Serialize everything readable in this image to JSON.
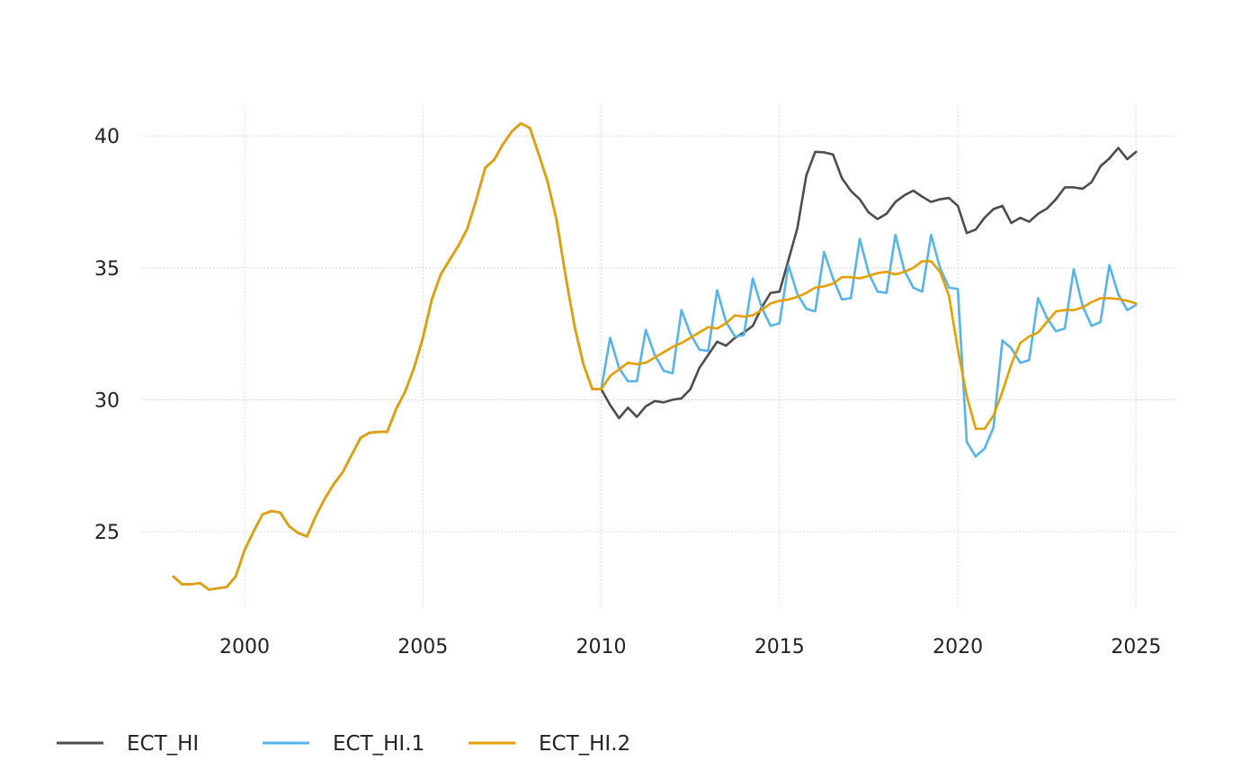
{
  "chart_data": {
    "type": "line",
    "title": "",
    "xlabel": "",
    "ylabel": "",
    "xlim": [
      1997.1,
      2026.1
    ],
    "ylim": [
      22.1,
      41.2
    ],
    "x_ticks": [
      2000,
      2005,
      2010,
      2015,
      2020,
      2025
    ],
    "x_tick_labels": [
      "2000",
      "2005",
      "2010",
      "2015",
      "2020",
      "2025"
    ],
    "y_ticks": [
      25,
      30,
      35,
      40
    ],
    "y_tick_labels": [
      "25",
      "30",
      "35",
      "40"
    ],
    "grid": true,
    "legend_position": "bottom-left",
    "x_start": 1998.0,
    "x_step": 0.25,
    "series": [
      {
        "name": "ECT_HI",
        "color": "#4d4d4d",
        "values": [
          23.3,
          23.0,
          23.0,
          23.05,
          22.8,
          22.85,
          22.9,
          23.3,
          24.3,
          25.0,
          25.65,
          25.78,
          25.72,
          25.2,
          24.95,
          24.82,
          25.6,
          26.25,
          26.8,
          27.25,
          27.9,
          28.55,
          28.75,
          28.78,
          28.78,
          29.65,
          30.3,
          31.2,
          32.35,
          33.8,
          34.75,
          35.3,
          35.85,
          36.5,
          37.6,
          38.8,
          39.1,
          39.7,
          40.18,
          40.48,
          40.3,
          39.3,
          38.25,
          36.8,
          34.7,
          32.8,
          31.35,
          30.4,
          30.4,
          29.8,
          29.3,
          29.7,
          29.35,
          29.75,
          29.95,
          29.9,
          30.0,
          30.05,
          30.4,
          31.2,
          31.7,
          32.2,
          32.05,
          32.35,
          32.55,
          32.8,
          33.5,
          34.05,
          34.1,
          35.3,
          36.5,
          38.5,
          39.4,
          39.38,
          39.3,
          38.4,
          37.92,
          37.6,
          37.1,
          36.85,
          37.05,
          37.5,
          37.75,
          37.93,
          37.7,
          37.5,
          37.6,
          37.65,
          37.35,
          36.32,
          36.45,
          36.9,
          37.23,
          37.35,
          36.7,
          36.9,
          36.75,
          37.05,
          37.25,
          37.6,
          38.05,
          38.05,
          38.0,
          38.25,
          38.85,
          39.15,
          39.55,
          39.12,
          39.4
        ]
      },
      {
        "name": "ECT_HI.1",
        "color": "#56b4e9",
        "values": [
          23.3,
          23.0,
          23.0,
          23.05,
          22.8,
          22.85,
          22.9,
          23.3,
          24.3,
          25.0,
          25.65,
          25.78,
          25.72,
          25.2,
          24.95,
          24.82,
          25.6,
          26.25,
          26.8,
          27.25,
          27.9,
          28.55,
          28.75,
          28.78,
          28.78,
          29.65,
          30.3,
          31.2,
          32.35,
          33.8,
          34.75,
          35.3,
          35.85,
          36.5,
          37.6,
          38.8,
          39.1,
          39.7,
          40.18,
          40.48,
          40.3,
          39.3,
          38.25,
          36.8,
          34.7,
          32.8,
          31.35,
          30.4,
          30.4,
          32.35,
          31.2,
          30.7,
          30.7,
          32.65,
          31.7,
          31.1,
          31.0,
          33.4,
          32.5,
          31.9,
          31.85,
          34.15,
          32.95,
          32.4,
          32.45,
          34.6,
          33.5,
          32.8,
          32.9,
          35.1,
          34.0,
          33.45,
          33.35,
          35.6,
          34.6,
          33.8,
          33.85,
          36.1,
          34.8,
          34.1,
          34.05,
          36.25,
          34.9,
          34.25,
          34.1,
          36.25,
          35.0,
          34.25,
          34.2,
          28.4,
          27.85,
          28.15,
          28.95,
          32.25,
          31.95,
          31.4,
          31.5,
          33.85,
          33.1,
          32.6,
          32.7,
          34.95,
          33.55,
          32.8,
          32.95,
          35.1,
          34.0,
          33.4,
          33.6
        ]
      },
      {
        "name": "ECT_HI.2",
        "color": "#e69f00",
        "values": [
          23.3,
          23.0,
          23.0,
          23.05,
          22.8,
          22.85,
          22.9,
          23.3,
          24.3,
          25.0,
          25.65,
          25.78,
          25.72,
          25.2,
          24.95,
          24.82,
          25.6,
          26.25,
          26.8,
          27.25,
          27.9,
          28.55,
          28.75,
          28.78,
          28.78,
          29.65,
          30.3,
          31.2,
          32.35,
          33.8,
          34.75,
          35.3,
          35.85,
          36.5,
          37.6,
          38.8,
          39.1,
          39.7,
          40.18,
          40.48,
          40.3,
          39.3,
          38.25,
          36.8,
          34.7,
          32.8,
          31.35,
          30.4,
          30.4,
          30.9,
          31.15,
          31.4,
          31.35,
          31.4,
          31.6,
          31.8,
          32.0,
          32.15,
          32.35,
          32.55,
          32.75,
          32.7,
          32.9,
          33.2,
          33.15,
          33.2,
          33.4,
          33.65,
          33.75,
          33.8,
          33.9,
          34.05,
          34.25,
          34.3,
          34.4,
          34.65,
          34.65,
          34.6,
          34.7,
          34.8,
          34.85,
          34.75,
          34.85,
          35.0,
          35.25,
          35.25,
          34.85,
          33.95,
          31.9,
          30.15,
          28.9,
          28.9,
          29.4,
          30.3,
          31.35,
          32.15,
          32.4,
          32.55,
          32.95,
          33.35,
          33.4,
          33.4,
          33.5,
          33.7,
          33.85,
          33.85,
          33.82,
          33.75,
          33.65
        ]
      }
    ]
  }
}
